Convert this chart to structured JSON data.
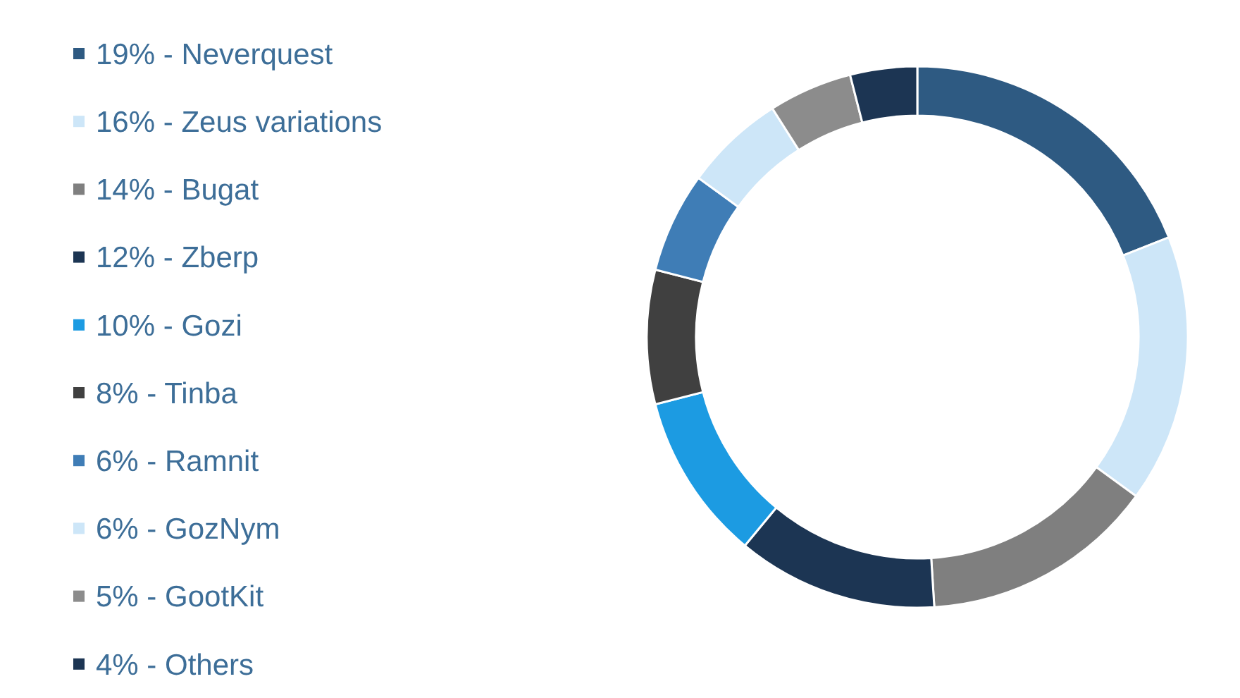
{
  "chart_data": {
    "type": "donut",
    "categories": [
      "19% - Neverquest",
      "16% - Zeus variations",
      "14% - Bugat",
      "12% - Zberp",
      "10% - Gozi",
      "8% - Tinba",
      "6% - Ramnit",
      "6% - GozNym",
      "5% - GootKit",
      "4% - Others"
    ],
    "values": [
      19,
      16,
      14,
      12,
      10,
      8,
      6,
      6,
      5,
      4
    ],
    "colors": [
      "#2e5a82",
      "#cde6f8",
      "#7f7f7f",
      "#1c3553",
      "#1c9be2",
      "#404040",
      "#3f7db6",
      "#cde6f8",
      "#8c8c8c",
      "#1c3553"
    ],
    "legend": "left"
  }
}
